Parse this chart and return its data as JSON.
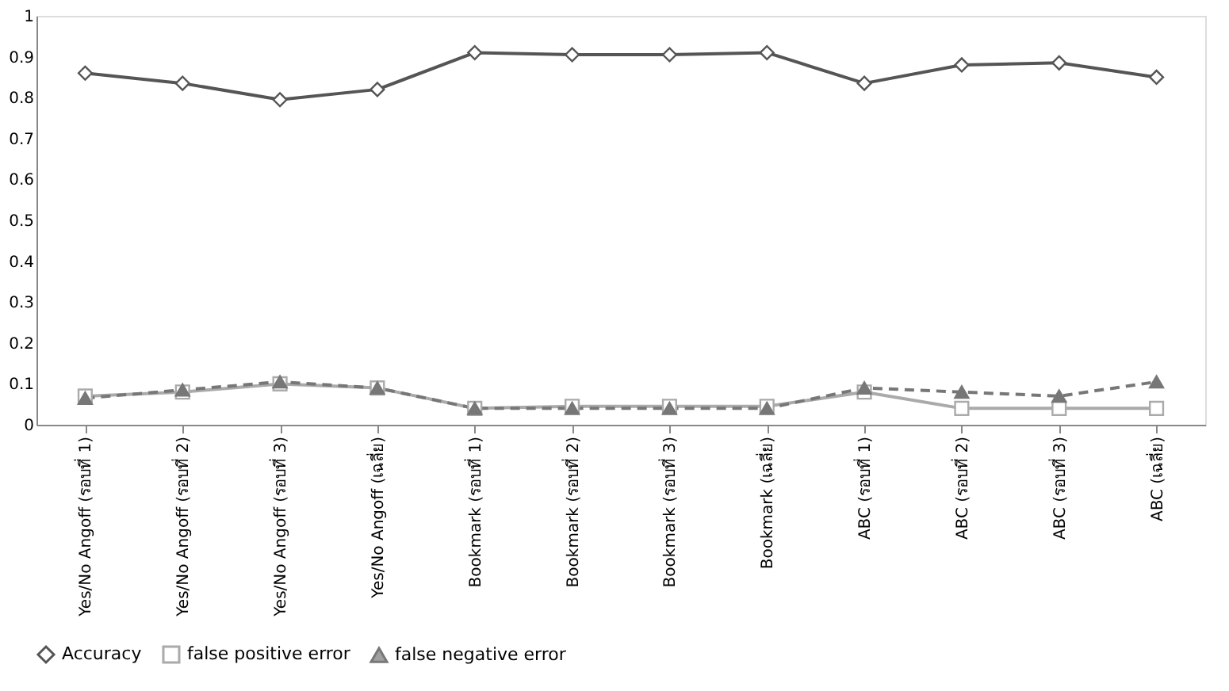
{
  "chart_data": {
    "type": "line",
    "categories": [
      "Yes/No Angoff (รอบที่ 1)",
      "Yes/No Angoff (รอบที่ 2)",
      "Yes/No Angoff (รอบที่ 3)",
      "Yes/No Angoff (เฉลี่ย)",
      "Bookmark (รอบที่ 1)",
      "Bookmark (รอบที่ 2)",
      "Bookmark (รอบที่ 3)",
      "Bookmark (เฉลี่ย)",
      "ABC (รอบที่ 1)",
      "ABC (รอบที่ 2)",
      "ABC (รอบที่ 3)",
      "ABC (เฉลี่ย)"
    ],
    "series": [
      {
        "name": "Accuracy",
        "color": "#555555",
        "marker": "diamond",
        "line_style": "solid",
        "values": [
          0.86,
          0.835,
          0.795,
          0.82,
          0.91,
          0.905,
          0.905,
          0.91,
          0.835,
          0.88,
          0.885,
          0.85
        ]
      },
      {
        "name": "false positive error",
        "color": "#aaaaaa",
        "marker": "square",
        "line_style": "solid",
        "values": [
          0.07,
          0.08,
          0.1,
          0.09,
          0.04,
          0.045,
          0.045,
          0.045,
          0.08,
          0.04,
          0.04,
          0.04
        ]
      },
      {
        "name": "false negative error",
        "color": "#777777",
        "marker": "triangle",
        "line_style": "dashed",
        "values": [
          0.065,
          0.085,
          0.105,
          0.09,
          0.04,
          0.04,
          0.04,
          0.04,
          0.09,
          0.08,
          0.07,
          0.105
        ]
      }
    ],
    "ylim": [
      0,
      1
    ],
    "yticks": [
      0,
      0.1,
      0.2,
      0.3,
      0.4,
      0.5,
      0.6,
      0.7,
      0.8,
      0.9,
      1
    ],
    "grid": false,
    "legend": "bottom"
  }
}
